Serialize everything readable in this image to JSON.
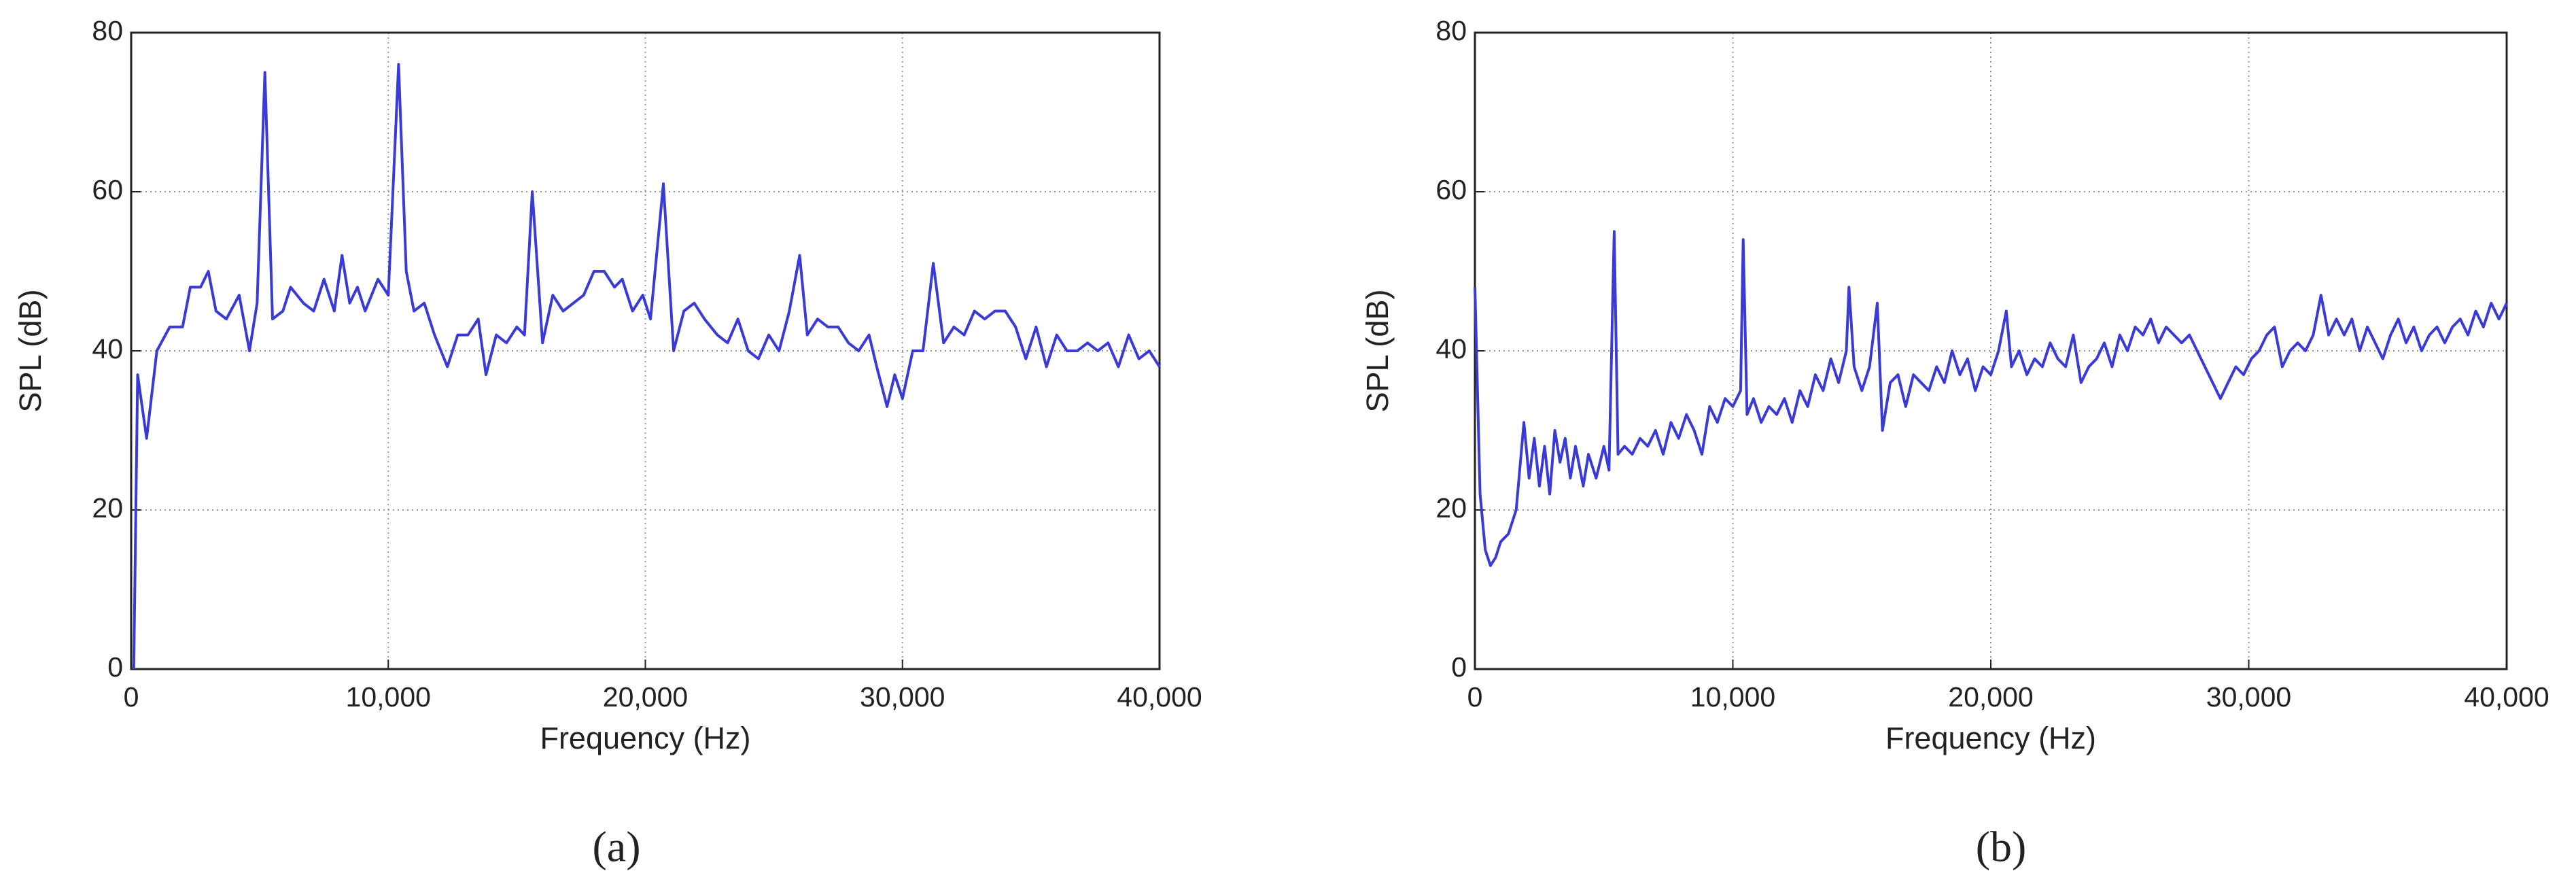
{
  "chart_data": [
    {
      "type": "line",
      "caption": "(a)",
      "xlabel": "Frequency (Hz)",
      "ylabel": "SPL (dB)",
      "xlim": [
        0,
        40000
      ],
      "ylim": [
        0,
        80
      ],
      "xticks": [
        0,
        {
          "value": 10000,
          "label": "10,000"
        },
        {
          "value": 20000,
          "label": "20,000"
        },
        {
          "value": 30000,
          "label": "30,000"
        },
        {
          "value": 40000,
          "label": "40,000"
        }
      ],
      "yticks": [
        0,
        20,
        40,
        60,
        80
      ],
      "grid": true,
      "color": "#3a3ad6",
      "x": [
        100,
        250,
        600,
        1000,
        1500,
        2000,
        2300,
        2700,
        3000,
        3300,
        3700,
        4200,
        4600,
        4900,
        5200,
        5500,
        5900,
        6200,
        6700,
        7100,
        7500,
        7900,
        8200,
        8500,
        8800,
        9100,
        9600,
        10000,
        10400,
        10700,
        11000,
        11400,
        11800,
        12300,
        12700,
        13100,
        13500,
        13800,
        14200,
        14600,
        15000,
        15300,
        15600,
        16000,
        16400,
        16800,
        17200,
        17600,
        18000,
        18400,
        18800,
        19100,
        19500,
        19900,
        20200,
        20700,
        21100,
        21500,
        21900,
        22300,
        22800,
        23200,
        23600,
        24000,
        24400,
        24800,
        25200,
        25600,
        26000,
        26300,
        26700,
        27100,
        27500,
        27900,
        28300,
        28700,
        29000,
        29400,
        29700,
        30000,
        30400,
        30800,
        31200,
        31600,
        32000,
        32400,
        32800,
        33200,
        33600,
        34000,
        34400,
        34800,
        35200,
        35600,
        36000,
        36400,
        36800,
        37200,
        37600,
        38000,
        38400,
        38800,
        39200,
        39600,
        40000
      ],
      "values": [
        0,
        37,
        29,
        40,
        43,
        43,
        48,
        48,
        50,
        45,
        44,
        47,
        40,
        46,
        75,
        44,
        45,
        48,
        46,
        45,
        49,
        45,
        52,
        46,
        48,
        45,
        49,
        47,
        76,
        50,
        45,
        46,
        42,
        38,
        42,
        42,
        44,
        37,
        42,
        41,
        43,
        42,
        60,
        41,
        47,
        45,
        46,
        47,
        50,
        50,
        48,
        49,
        45,
        47,
        44,
        61,
        40,
        45,
        46,
        44,
        42,
        41,
        44,
        40,
        39,
        42,
        40,
        45,
        52,
        42,
        44,
        43,
        43,
        41,
        40,
        42,
        38,
        33,
        37,
        34,
        40,
        40,
        51,
        41,
        43,
        42,
        45,
        44,
        45,
        45,
        43,
        39,
        43,
        38,
        42,
        40,
        40,
        41,
        40,
        41,
        38,
        42,
        39,
        40,
        38
      ]
    },
    {
      "type": "line",
      "caption": "(b)",
      "xlabel": "Frequency (Hz)",
      "ylabel": "SPL (dB)",
      "xlim": [
        0,
        40000
      ],
      "ylim": [
        0,
        80
      ],
      "xticks": [
        0,
        {
          "value": 10000,
          "label": "10,000"
        },
        {
          "value": 20000,
          "label": "20,000"
        },
        {
          "value": 30000,
          "label": "30,000"
        },
        {
          "value": 40000,
          "label": "40,000"
        }
      ],
      "yticks": [
        0,
        20,
        40,
        60,
        80
      ],
      "grid": true,
      "color": "#3a3ad6",
      "x": [
        0,
        200,
        400,
        600,
        800,
        1000,
        1300,
        1600,
        1900,
        2100,
        2300,
        2500,
        2700,
        2900,
        3100,
        3300,
        3500,
        3700,
        3900,
        4200,
        4400,
        4700,
        5000,
        5200,
        5400,
        5550,
        5800,
        6100,
        6400,
        6700,
        7000,
        7300,
        7600,
        7900,
        8200,
        8500,
        8800,
        9100,
        9400,
        9700,
        10000,
        10300,
        10400,
        10550,
        10800,
        11100,
        11400,
        11700,
        12000,
        12300,
        12600,
        12900,
        13200,
        13500,
        13800,
        14100,
        14400,
        14500,
        14700,
        15000,
        15300,
        15600,
        15800,
        16100,
        16400,
        16700,
        17000,
        17300,
        17600,
        17900,
        18200,
        18500,
        18800,
        19100,
        19400,
        19700,
        20000,
        20300,
        20600,
        20800,
        21100,
        21400,
        21700,
        22000,
        22300,
        22600,
        22900,
        23200,
        23500,
        23800,
        24100,
        24400,
        24700,
        25000,
        25300,
        25600,
        25900,
        26200,
        26500,
        26800,
        27100,
        27400,
        27700,
        28000,
        28300,
        28600,
        28900,
        29200,
        29500,
        29800,
        30100,
        30400,
        30700,
        31000,
        31300,
        31600,
        31900,
        32200,
        32500,
        32800,
        33100,
        33400,
        33700,
        34000,
        34300,
        34600,
        34900,
        35200,
        35500,
        35800,
        36100,
        36400,
        36700,
        37000,
        37300,
        37600,
        37900,
        38200,
        38500,
        38800,
        39100,
        39400,
        39700,
        40000
      ],
      "values": [
        48,
        22,
        15,
        13,
        14,
        16,
        17,
        20,
        31,
        24,
        29,
        23,
        28,
        22,
        30,
        26,
        29,
        24,
        28,
        23,
        27,
        24,
        28,
        25,
        55,
        27,
        28,
        27,
        29,
        28,
        30,
        27,
        31,
        29,
        32,
        30,
        27,
        33,
        31,
        34,
        33,
        35,
        54,
        32,
        34,
        31,
        33,
        32,
        34,
        31,
        35,
        33,
        37,
        35,
        39,
        36,
        40,
        48,
        38,
        35,
        38,
        46,
        30,
        36,
        37,
        33,
        37,
        36,
        35,
        38,
        36,
        40,
        37,
        39,
        35,
        38,
        37,
        40,
        45,
        38,
        40,
        37,
        39,
        38,
        41,
        39,
        38,
        42,
        36,
        38,
        39,
        41,
        38,
        42,
        40,
        43,
        42,
        44,
        41,
        43,
        42,
        41,
        42,
        40,
        38,
        36,
        34,
        36,
        38,
        37,
        39,
        40,
        42,
        43,
        38,
        40,
        41,
        40,
        42,
        47,
        42,
        44,
        42,
        44,
        40,
        43,
        41,
        39,
        42,
        44,
        41,
        43,
        40,
        42,
        43,
        41,
        43,
        44,
        42,
        45,
        43,
        46,
        44,
        46
      ]
    }
  ]
}
